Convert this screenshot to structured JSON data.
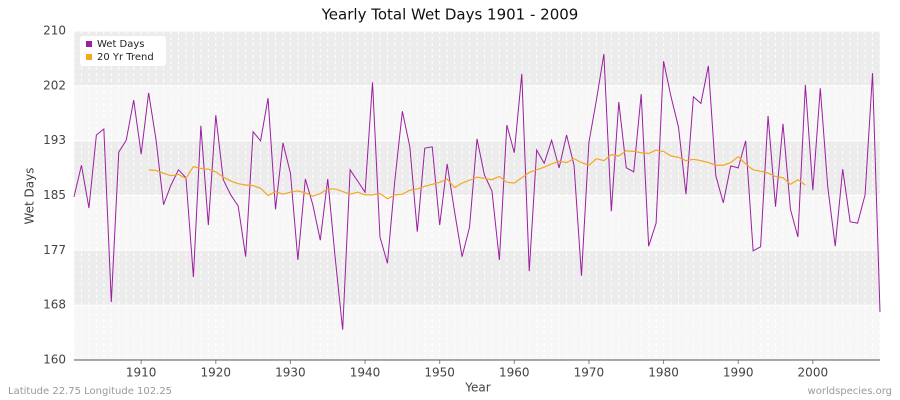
{
  "chart_data": {
    "type": "line",
    "title": "Yearly Total Wet Days 1901 - 2009",
    "x_label": "Year",
    "y_label": "Wet Days",
    "xlim": [
      1901,
      2009
    ],
    "xticks": [
      1910,
      1920,
      1930,
      1940,
      1950,
      1960,
      1970,
      1980,
      1990,
      2000
    ],
    "ylim": [
      160,
      210
    ],
    "yticks": [
      160,
      {
        "value": 168.33,
        "label": "168"
      },
      {
        "value": 176.67,
        "label": "177"
      },
      185,
      {
        "value": 193.33,
        "label": "193"
      },
      {
        "value": 201.67,
        "label": "202"
      },
      210
    ],
    "grid": true,
    "legend": "top-left",
    "footer_left": "Latitude 22.75 Longitude 102.25",
    "footer_right": "worldspecies.org",
    "series": [
      {
        "name": "Wet Days",
        "color": "#9b1fa0",
        "x": [
          1901,
          1902,
          1903,
          1904,
          1905,
          1906,
          1907,
          1908,
          1909,
          1910,
          1911,
          1912,
          1913,
          1914,
          1915,
          1916,
          1917,
          1918,
          1919,
          1920,
          1921,
          1922,
          1923,
          1924,
          1925,
          1926,
          1927,
          1928,
          1929,
          1930,
          1931,
          1932,
          1933,
          1934,
          1935,
          1936,
          1937,
          1938,
          1939,
          1940,
          1941,
          1942,
          1943,
          1944,
          1945,
          1946,
          1947,
          1948,
          1949,
          1950,
          1951,
          1952,
          1953,
          1954,
          1955,
          1956,
          1957,
          1958,
          1959,
          1960,
          1961,
          1962,
          1963,
          1964,
          1965,
          1966,
          1967,
          1968,
          1969,
          1970,
          1971,
          1972,
          1973,
          1974,
          1975,
          1976,
          1977,
          1978,
          1979,
          1980,
          1981,
          1982,
          1983,
          1984,
          1985,
          1986,
          1987,
          1988,
          1989,
          1990,
          1991,
          1992,
          1993,
          1994,
          1995,
          1996,
          1997,
          1998,
          1999,
          2000,
          2001,
          2002,
          2003,
          2004,
          2005,
          2006,
          2007,
          2008,
          2009
        ],
        "values": [
          184.8,
          189.6,
          183.1,
          194.2,
          195.1,
          168.8,
          191.6,
          193.4,
          199.5,
          191.3,
          200.6,
          193.4,
          183.6,
          186.6,
          188.9,
          187.7,
          172.6,
          195.6,
          180.5,
          197.2,
          187.4,
          185.1,
          183.4,
          175.7,
          194.7,
          193.3,
          199.8,
          182.9,
          193.0,
          188.4,
          175.2,
          187.5,
          183.6,
          178.2,
          187.5,
          175.5,
          164.6,
          188.9,
          187.2,
          185.5,
          202.2,
          178.7,
          174.7,
          187.4,
          197.8,
          192.4,
          179.5,
          192.2,
          192.4,
          180.5,
          189.8,
          182.5,
          175.7,
          180.2,
          193.6,
          188.1,
          185.7,
          175.2,
          195.7,
          191.5,
          203.5,
          173.5,
          191.9,
          189.9,
          193.4,
          189.2,
          194.2,
          189.6,
          172.8,
          193.1,
          199.5,
          206.5,
          182.6,
          199.2,
          189.2,
          188.6,
          200.4,
          177.3,
          180.8,
          205.4,
          200.0,
          195.4,
          185.2,
          200.0,
          199.0,
          204.7,
          188.0,
          183.9,
          189.5,
          189.2,
          193.3,
          176.6,
          177.2,
          197.1,
          183.3,
          195.9,
          182.9,
          178.7,
          201.8,
          185.8,
          201.3,
          186.3,
          177.3,
          189.0,
          181.0,
          180.8,
          185.1,
          203.6,
          167.3
        ]
      },
      {
        "name": "20 Yr Trend",
        "color": "#f5a623",
        "x": [
          1911,
          1912,
          1913,
          1914,
          1915,
          1916,
          1917,
          1918,
          1919,
          1920,
          1921,
          1922,
          1923,
          1924,
          1925,
          1926,
          1927,
          1928,
          1929,
          1930,
          1931,
          1932,
          1933,
          1934,
          1935,
          1936,
          1937,
          1938,
          1939,
          1940,
          1941,
          1942,
          1943,
          1944,
          1945,
          1946,
          1947,
          1948,
          1949,
          1950,
          1951,
          1952,
          1953,
          1954,
          1955,
          1956,
          1957,
          1958,
          1959,
          1960,
          1961,
          1962,
          1963,
          1964,
          1965,
          1966,
          1967,
          1968,
          1969,
          1970,
          1971,
          1972,
          1973,
          1974,
          1975,
          1976,
          1977,
          1978,
          1979,
          1980,
          1981,
          1982,
          1983,
          1984,
          1985,
          1986,
          1987,
          1988,
          1989,
          1990,
          1991,
          1992,
          1993,
          1994,
          1995,
          1996,
          1997,
          1998,
          1999
        ],
        "values": [
          188.9,
          188.8,
          188.4,
          188.0,
          188.2,
          187.6,
          189.4,
          189.1,
          189.0,
          188.6,
          187.8,
          187.2,
          186.8,
          186.6,
          186.5,
          186.1,
          185.0,
          185.6,
          185.2,
          185.5,
          185.7,
          185.4,
          184.9,
          185.3,
          186.0,
          186.0,
          185.6,
          185.2,
          185.5,
          185.1,
          185.1,
          185.3,
          184.5,
          185.1,
          185.2,
          185.8,
          186.0,
          186.4,
          186.7,
          187.0,
          187.5,
          186.2,
          186.9,
          187.3,
          187.8,
          187.6,
          187.4,
          187.9,
          187.0,
          186.9,
          187.7,
          188.5,
          188.9,
          189.3,
          189.8,
          190.2,
          190.0,
          190.6,
          190.0,
          189.6,
          190.6,
          190.3,
          191.2,
          191.0,
          191.8,
          191.7,
          191.5,
          191.4,
          191.9,
          191.7,
          191.0,
          190.8,
          190.3,
          190.5,
          190.3,
          190.0,
          189.6,
          189.6,
          190.0,
          190.9,
          189.8,
          188.9,
          188.7,
          188.4,
          187.9,
          187.7,
          186.7,
          187.4,
          186.6
        ]
      }
    ]
  }
}
